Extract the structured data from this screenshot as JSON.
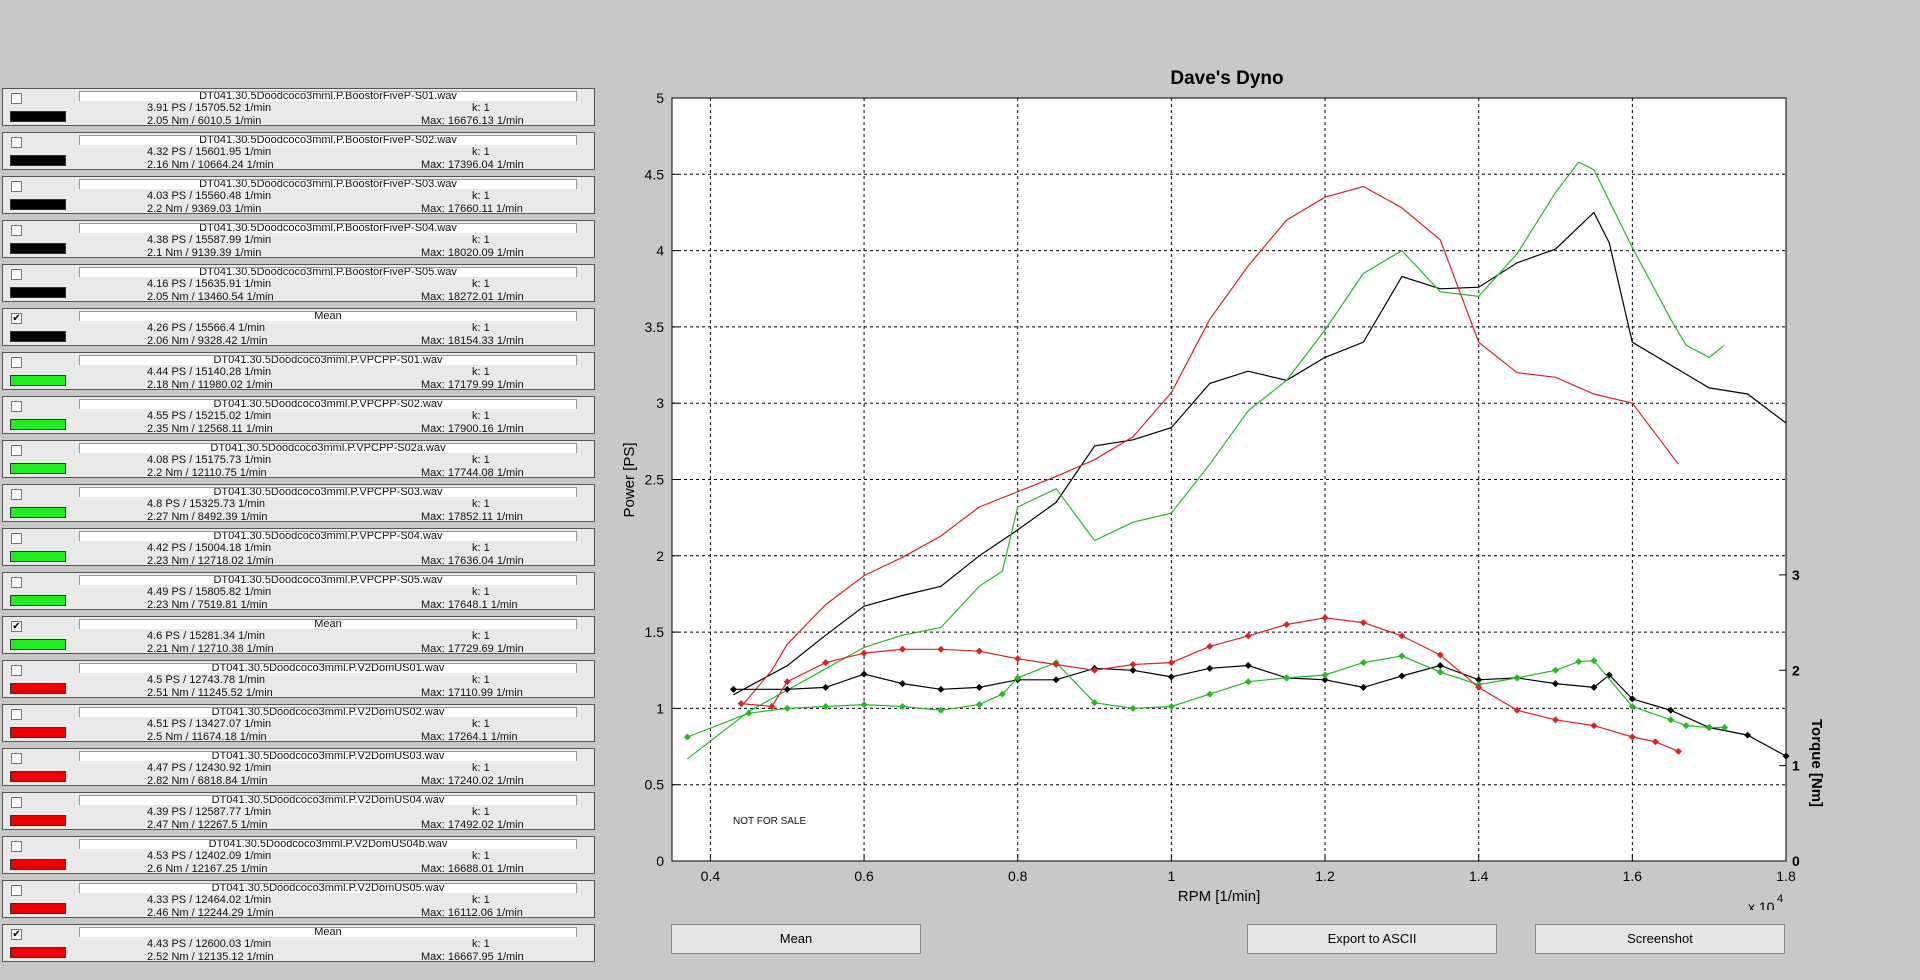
{
  "runs": [
    {
      "name": "DT041.30.5Doodcoco3mml.P.BoostorFiveP-S01.wav",
      "line1": "3.91 PS / 15705.52 1/min",
      "line2": "2.05 Nm / 6010.5 1/min",
      "k": "k: 1",
      "max": "Max: 16676.13 1/min",
      "color": "#000000",
      "checked": false
    },
    {
      "name": "DT041.30.5Doodcoco3mml.P.BoostorFiveP-S02.wav",
      "line1": "4.32 PS / 15601.95 1/min",
      "line2": "2.16 Nm / 10664.24 1/min",
      "k": "k: 1",
      "max": "Max: 17396.04 1/min",
      "color": "#000000",
      "checked": false
    },
    {
      "name": "DT041.30.5Doodcoco3mml.P.BoostorFiveP-S03.wav",
      "line1": "4.03 PS / 15560.48 1/min",
      "line2": "2.2 Nm / 9369.03 1/min",
      "k": "k: 1",
      "max": "Max: 17660.11 1/min",
      "color": "#000000",
      "checked": false
    },
    {
      "name": "DT041.30.5Doodcoco3mml.P.BoostorFiveP-S04.wav",
      "line1": "4.38 PS / 15587.99 1/min",
      "line2": "2.1 Nm / 9139.39 1/min",
      "k": "k: 1",
      "max": "Max: 18020.09 1/min",
      "color": "#000000",
      "checked": false
    },
    {
      "name": "DT041.30.5Doodcoco3mml.P.BoostorFiveP-S05.wav",
      "line1": "4.16 PS / 15635.91 1/min",
      "line2": "2.05 Nm / 13460.54 1/min",
      "k": "k: 1",
      "max": "Max: 18272.01 1/min",
      "color": "#000000",
      "checked": false
    },
    {
      "name": "Mean",
      "line1": "4.26 PS / 15566.4 1/min",
      "line2": "2.06 Nm / 9328.42 1/min",
      "k": "k: 1",
      "max": "Max: 18154.33 1/min",
      "color": "#000000",
      "checked": true
    },
    {
      "name": "DT041.30.5Doodcoco3mml.P.VPCPP-S01.wav",
      "line1": "4.44 PS / 15140.28 1/min",
      "line2": "2.18 Nm / 11980.02 1/min",
      "k": "k: 1",
      "max": "Max: 17179.99 1/min",
      "color": "#22ee22",
      "checked": false
    },
    {
      "name": "DT041.30.5Doodcoco3mml.P.VPCPP-S02.wav",
      "line1": "4.55 PS / 15215.02 1/min",
      "line2": "2.35 Nm / 12568.11 1/min",
      "k": "k: 1",
      "max": "Max: 17900.16 1/min",
      "color": "#22ee22",
      "checked": false
    },
    {
      "name": "DT041.30.5Doodcoco3mml.P.VPCPP-S02a.wav",
      "line1": "4.08 PS / 15175.73 1/min",
      "line2": "2.2 Nm / 12110.75 1/min",
      "k": "k: 1",
      "max": "Max: 17744.08 1/min",
      "color": "#22ee22",
      "checked": false
    },
    {
      "name": "DT041.30.5Doodcoco3mml.P.VPCPP-S03.wav",
      "line1": "4.8 PS / 15325.73 1/min",
      "line2": "2.27 Nm / 8492.39 1/min",
      "k": "k: 1",
      "max": "Max: 17852.11 1/min",
      "color": "#22ee22",
      "checked": false
    },
    {
      "name": "DT041.30.5Doodcoco3mml.P.VPCPP-S04.wav",
      "line1": "4.42 PS / 15004.18 1/min",
      "line2": "2.23 Nm / 12718.02 1/min",
      "k": "k: 1",
      "max": "Max: 17636.04 1/min",
      "color": "#22ee22",
      "checked": false
    },
    {
      "name": "DT041.30.5Doodcoco3mml.P.VPCPP-S05.wav",
      "line1": "4.49 PS / 15805.82 1/min",
      "line2": "2.23 Nm / 7519.81 1/min",
      "k": "k: 1",
      "max": "Max: 17648.1 1/min",
      "color": "#22ee22",
      "checked": false
    },
    {
      "name": "Mean",
      "line1": "4.6 PS / 15281.34 1/min",
      "line2": "2.21 Nm / 12710.38 1/min",
      "k": "k: 1",
      "max": "Max: 17729.69 1/min",
      "color": "#22ee22",
      "checked": true
    },
    {
      "name": "DT041.30.5Doodcoco3mml.P.V2DomUS01.wav",
      "line1": "4.5 PS / 12743.78 1/min",
      "line2": "2.51 Nm / 11245.52 1/min",
      "k": "k: 1",
      "max": "Max: 17110.99 1/min",
      "color": "#ee0000",
      "checked": false
    },
    {
      "name": "DT041.30.5Doodcoco3mml.P.V2DomUS02.wav",
      "line1": "4.51 PS / 13427.07 1/min",
      "line2": "2.5 Nm / 11674.18 1/min",
      "k": "k: 1",
      "max": "Max: 17264.1 1/min",
      "color": "#ee0000",
      "checked": false
    },
    {
      "name": "DT041.30.5Doodcoco3mml.P.V2DomUS03.wav",
      "line1": "4.47 PS / 12430.92 1/min",
      "line2": "2.82 Nm / 6818.84 1/min",
      "k": "k: 1",
      "max": "Max: 17240.02 1/min",
      "color": "#ee0000",
      "checked": false
    },
    {
      "name": "DT041.30.5Doodcoco3mml.P.V2DomUS04.wav",
      "line1": "4.39 PS / 12587.77 1/min",
      "line2": "2.47 Nm / 12267.5 1/min",
      "k": "k: 1",
      "max": "Max: 17492.02 1/min",
      "color": "#ee0000",
      "checked": false
    },
    {
      "name": "DT041.30.5Doodcoco3mml.P.V2DomUS04b.wav",
      "line1": "4.53 PS / 12402.09 1/min",
      "line2": "2.6 Nm / 12167.25 1/min",
      "k": "k: 1",
      "max": "Max: 16688.01 1/min",
      "color": "#ee0000",
      "checked": false
    },
    {
      "name": "DT041.30.5Doodcoco3mml.P.V2DomUS05.wav",
      "line1": "4.33 PS / 12464.02 1/min",
      "line2": "2.46 Nm / 12244.29 1/min",
      "k": "k: 1",
      "max": "Max: 16112.06 1/min",
      "color": "#ee0000",
      "checked": false
    },
    {
      "name": "Mean",
      "line1": "4.43 PS / 12600.03 1/min",
      "line2": "2.52 Nm / 12135.12 1/min",
      "k": "k: 1",
      "max": "Max: 16667.95 1/min",
      "color": "#ee0000",
      "checked": true
    }
  ],
  "watermark": "NOT FOR SALE",
  "buttons": {
    "mean": "Mean",
    "export": "Export to ASCII",
    "screenshot": "Screenshot"
  },
  "chart_data": {
    "type": "line",
    "title": "Dave's Dyno",
    "xlabel": "RPM [1/min]",
    "ylabel": "Power [PS]",
    "y2label": "Torque [Nm]",
    "x_multiplier_label": "x 10",
    "x_multiplier_exp": "4",
    "xlim": [
      3500,
      18000
    ],
    "ylim": [
      0,
      5
    ],
    "y2lim": [
      0,
      8
    ],
    "xticks": [
      4000,
      6000,
      8000,
      10000,
      12000,
      14000,
      16000,
      18000
    ],
    "xtick_labels": [
      "0.4",
      "0.6",
      "0.8",
      "1",
      "1.2",
      "1.4",
      "1.6",
      "1.8"
    ],
    "yticks": [
      0,
      0.5,
      1,
      1.5,
      2,
      2.5,
      3,
      3.5,
      4,
      4.5,
      5
    ],
    "ytick_labels": [
      "0",
      "0.5",
      "1",
      "1.5",
      "2",
      "2.5",
      "3",
      "3.5",
      "4",
      "4.5",
      "5"
    ],
    "y2ticks": [
      0,
      1,
      2,
      3
    ],
    "y2tick_labels": [
      "0",
      "1",
      "2",
      "3"
    ],
    "grid": true,
    "power_series": [
      {
        "color": "#000000",
        "x": [
          4300,
          5000,
          5500,
          6000,
          6500,
          7000,
          7500,
          8000,
          8500,
          9000,
          9500,
          10000,
          10500,
          11000,
          11500,
          12000,
          12500,
          13000,
          13500,
          14000,
          14500,
          15000,
          15500,
          15700,
          16000,
          16500,
          17000,
          17500,
          18000
        ],
        "y": [
          1.09,
          1.28,
          1.48,
          1.67,
          1.74,
          1.8,
          2.0,
          2.17,
          2.35,
          2.72,
          2.76,
          2.84,
          3.13,
          3.21,
          3.15,
          3.3,
          3.4,
          3.83,
          3.75,
          3.76,
          3.92,
          4.01,
          4.25,
          4.05,
          3.4,
          3.25,
          3.1,
          3.06,
          2.87
        ]
      },
      {
        "color": "#22bb22",
        "x": [
          3700,
          4500,
          5000,
          5500,
          6000,
          6500,
          7000,
          7500,
          7800,
          8000,
          8500,
          9000,
          9500,
          10000,
          10500,
          11000,
          11500,
          12000,
          12500,
          13000,
          13500,
          14000,
          14500,
          15000,
          15300,
          15500,
          16000,
          16500,
          16700,
          17000,
          17200
        ],
        "y": [
          0.67,
          0.98,
          1.12,
          1.26,
          1.4,
          1.48,
          1.53,
          1.8,
          1.9,
          2.32,
          2.44,
          2.1,
          2.22,
          2.28,
          2.6,
          2.95,
          3.15,
          3.48,
          3.85,
          4.0,
          3.73,
          3.7,
          3.98,
          4.38,
          4.58,
          4.53,
          4.02,
          3.55,
          3.38,
          3.3,
          3.38
        ]
      },
      {
        "color": "#dd2222",
        "x": [
          4400,
          4800,
          5000,
          5500,
          6000,
          6500,
          7000,
          7500,
          8000,
          8500,
          9000,
          9500,
          10000,
          10500,
          11000,
          11500,
          12000,
          12500,
          13000,
          13500,
          14000,
          14500,
          15000,
          15500,
          16000,
          16300,
          16600
        ],
        "y": [
          1.01,
          1.25,
          1.42,
          1.68,
          1.87,
          1.99,
          2.13,
          2.32,
          2.42,
          2.52,
          2.63,
          2.78,
          3.07,
          3.55,
          3.9,
          4.2,
          4.35,
          4.42,
          4.28,
          4.07,
          3.4,
          3.2,
          3.17,
          3.06,
          3.0,
          2.8,
          2.6
        ]
      }
    ],
    "torque_series": [
      {
        "color": "#000000",
        "x": [
          4300,
          5000,
          5500,
          6000,
          6500,
          7000,
          7500,
          8000,
          8500,
          9000,
          9500,
          10000,
          10500,
          11000,
          11500,
          12000,
          12500,
          13000,
          13500,
          14000,
          14500,
          15000,
          15500,
          15700,
          16000,
          16500,
          17000,
          17500,
          18000
        ],
        "y": [
          1.8,
          1.8,
          1.82,
          1.96,
          1.86,
          1.8,
          1.82,
          1.9,
          1.9,
          2.02,
          2.0,
          1.93,
          2.02,
          2.05,
          1.92,
          1.9,
          1.82,
          1.94,
          2.05,
          1.9,
          1.92,
          1.86,
          1.82,
          1.95,
          1.7,
          1.58,
          1.4,
          1.32,
          1.1
        ]
      },
      {
        "color": "#22bb22",
        "x": [
          3700,
          4500,
          5000,
          5500,
          6000,
          6500,
          7000,
          7500,
          7800,
          8000,
          8500,
          9000,
          9500,
          10000,
          10500,
          11000,
          11500,
          12000,
          12500,
          13000,
          13500,
          14000,
          14500,
          15000,
          15300,
          15500,
          16000,
          16500,
          16700,
          17000,
          17200
        ],
        "y": [
          1.3,
          1.55,
          1.6,
          1.62,
          1.64,
          1.62,
          1.58,
          1.64,
          1.75,
          1.92,
          2.08,
          1.66,
          1.6,
          1.62,
          1.75,
          1.88,
          1.92,
          1.95,
          2.08,
          2.15,
          1.98,
          1.85,
          1.92,
          2.0,
          2.09,
          2.1,
          1.62,
          1.48,
          1.42,
          1.4,
          1.4
        ]
      },
      {
        "color": "#dd2222",
        "x": [
          4400,
          4800,
          5000,
          5500,
          6000,
          6500,
          7000,
          7500,
          8000,
          8500,
          9000,
          9500,
          10000,
          10500,
          11000,
          11500,
          12000,
          12500,
          13000,
          13500,
          14000,
          14500,
          15000,
          15500,
          16000,
          16300,
          16600
        ],
        "y": [
          1.65,
          1.62,
          1.88,
          2.08,
          2.18,
          2.22,
          2.22,
          2.2,
          2.12,
          2.06,
          2.0,
          2.06,
          2.08,
          2.25,
          2.36,
          2.48,
          2.55,
          2.5,
          2.36,
          2.16,
          1.82,
          1.58,
          1.48,
          1.42,
          1.3,
          1.25,
          1.15
        ]
      }
    ]
  }
}
